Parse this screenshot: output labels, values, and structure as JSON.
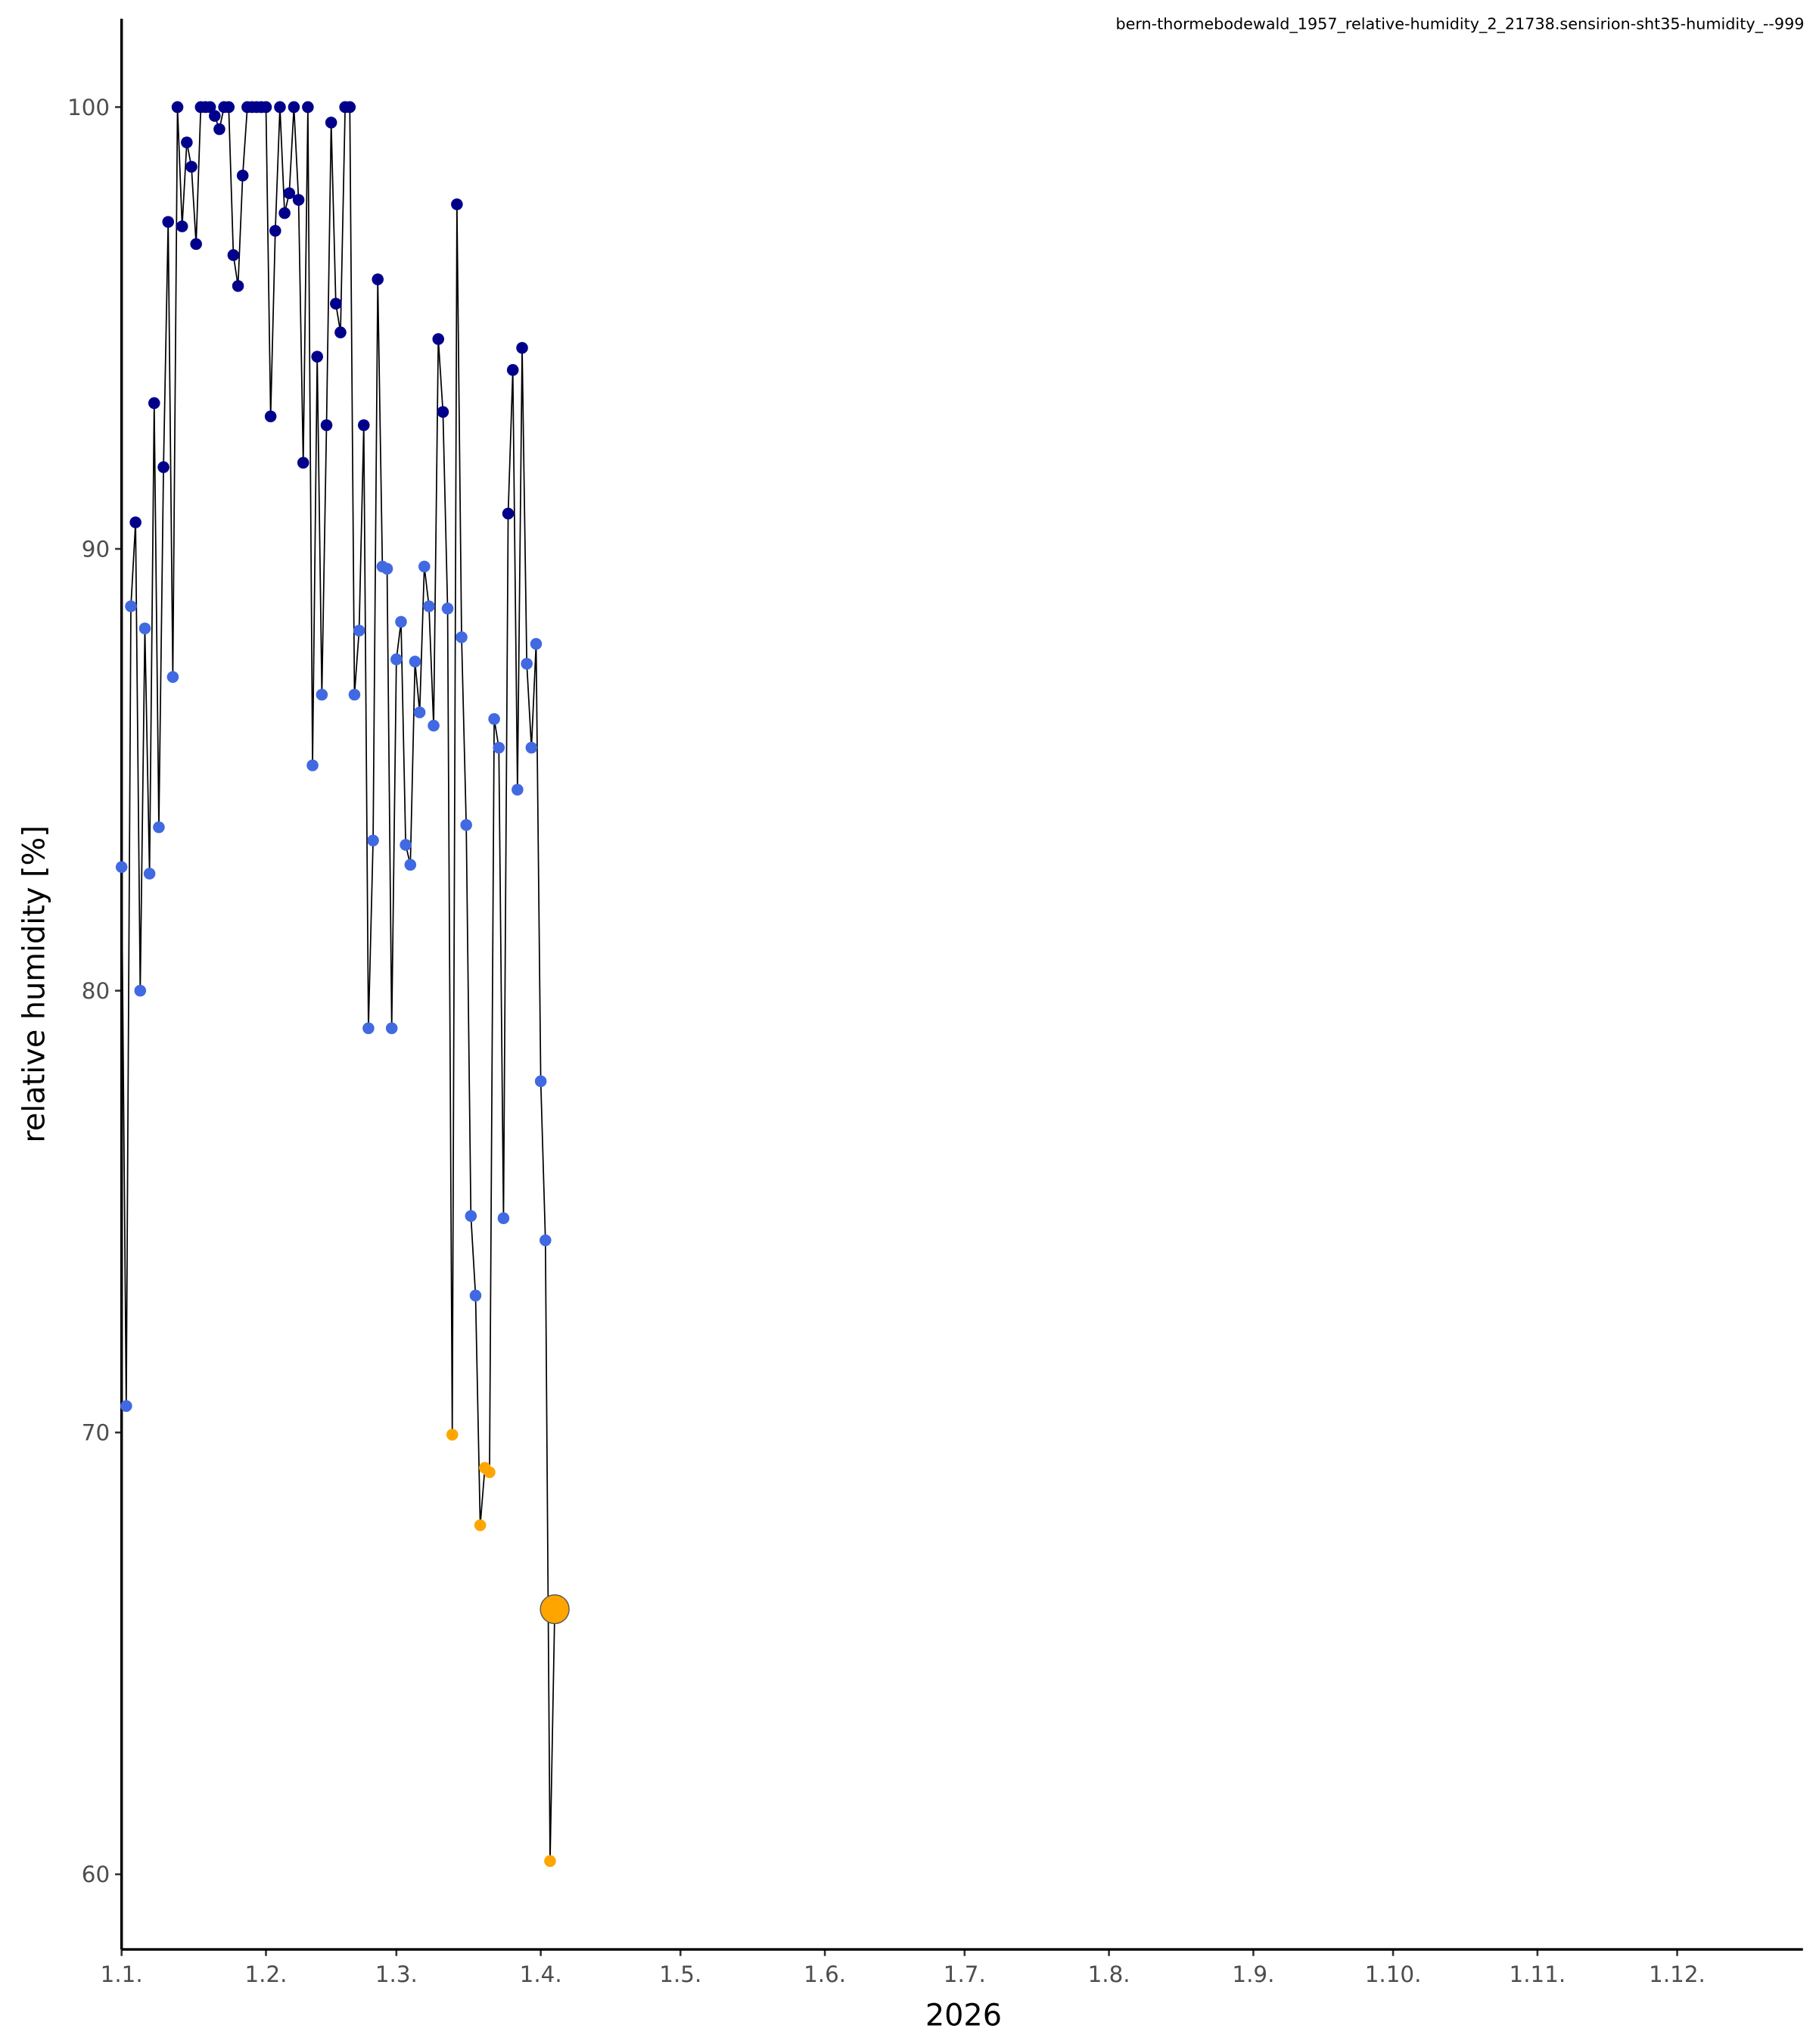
{
  "chart_data": {
    "type": "line",
    "title": "bern-thormebodewald_1957_relative-humidity_2_21738.sensirion-sht35-humidity_--999",
    "x_label": "2026",
    "y_label": "relative humidity [%]",
    "x": [
      0,
      1,
      2,
      3,
      4,
      5,
      6,
      7,
      8,
      9,
      10,
      11,
      12,
      13,
      14,
      15,
      16,
      17,
      18,
      19,
      20,
      21,
      22,
      23,
      24,
      25,
      26,
      27,
      28,
      29,
      30,
      31,
      32,
      33,
      34,
      35,
      36,
      37,
      38,
      39,
      40,
      41,
      42,
      43,
      44,
      45,
      46,
      47,
      48,
      49,
      50,
      51,
      52,
      53,
      54,
      55,
      56,
      57,
      58,
      59,
      60,
      61,
      62,
      63,
      64,
      65,
      66,
      67,
      68,
      69,
      70,
      71,
      72,
      73,
      74,
      75,
      76,
      77,
      78,
      79,
      80,
      81,
      82,
      83,
      84,
      85,
      86,
      87,
      88,
      89,
      90,
      91,
      92,
      93
    ],
    "values": [
      82.8,
      70.6,
      88.7,
      90.6,
      80.0,
      88.2,
      82.65,
      93.3,
      83.7,
      91.85,
      97.4,
      87.1,
      100,
      97.3,
      99.2,
      98.65,
      96.9,
      100,
      100,
      100,
      99.8,
      99.5,
      100,
      100,
      96.65,
      95.95,
      98.45,
      100,
      100,
      100,
      100,
      100,
      93.0,
      97.2,
      100,
      97.6,
      98.05,
      100,
      97.9,
      91.95,
      100,
      85.1,
      94.35,
      86.7,
      92.8,
      99.65,
      95.55,
      94.9,
      100,
      100,
      86.7,
      88.15,
      92.8,
      79.15,
      83.4,
      96.1,
      89.6,
      89.55,
      79.15,
      87.5,
      88.35,
      83.3,
      82.85,
      87.45,
      86.3,
      89.6,
      88.7,
      86.0,
      94.75,
      93.1,
      88.65,
      69.95,
      97.8,
      88.0,
      83.75,
      74.9,
      73.1,
      67.9,
      69.2,
      69.1,
      86.15,
      85.5,
      74.85,
      90.8,
      94.05,
      84.55,
      94.55,
      87.4,
      85.5,
      87.85,
      77.95,
      74.35,
      60.3,
      66.0
    ],
    "line_color": "#000000",
    "point_colors": [
      {
        "below": 70,
        "color": "#ffa500"
      },
      {
        "below": 90,
        "color": "#4169e1"
      },
      {
        "color": "#00008b"
      }
    ],
    "highlight_last": true,
    "xlim": [
      0,
      361
    ],
    "xticks": [
      {
        "value": 0,
        "label": "1.1."
      },
      {
        "value": 31,
        "label": "1.2."
      },
      {
        "value": 59,
        "label": "1.3."
      },
      {
        "value": 90,
        "label": "1.4."
      },
      {
        "value": 120,
        "label": "1.5."
      },
      {
        "value": 151,
        "label": "1.6."
      },
      {
        "value": 181,
        "label": "1.7."
      },
      {
        "value": 212,
        "label": "1.8."
      },
      {
        "value": 243,
        "label": "1.9."
      },
      {
        "value": 273,
        "label": "1.10."
      },
      {
        "value": 304,
        "label": "1.11."
      },
      {
        "value": 334,
        "label": "1.12."
      }
    ],
    "ylim": [
      58.3,
      102
    ],
    "yticks": [
      60,
      70,
      80,
      90,
      100
    ],
    "grid": false
  }
}
